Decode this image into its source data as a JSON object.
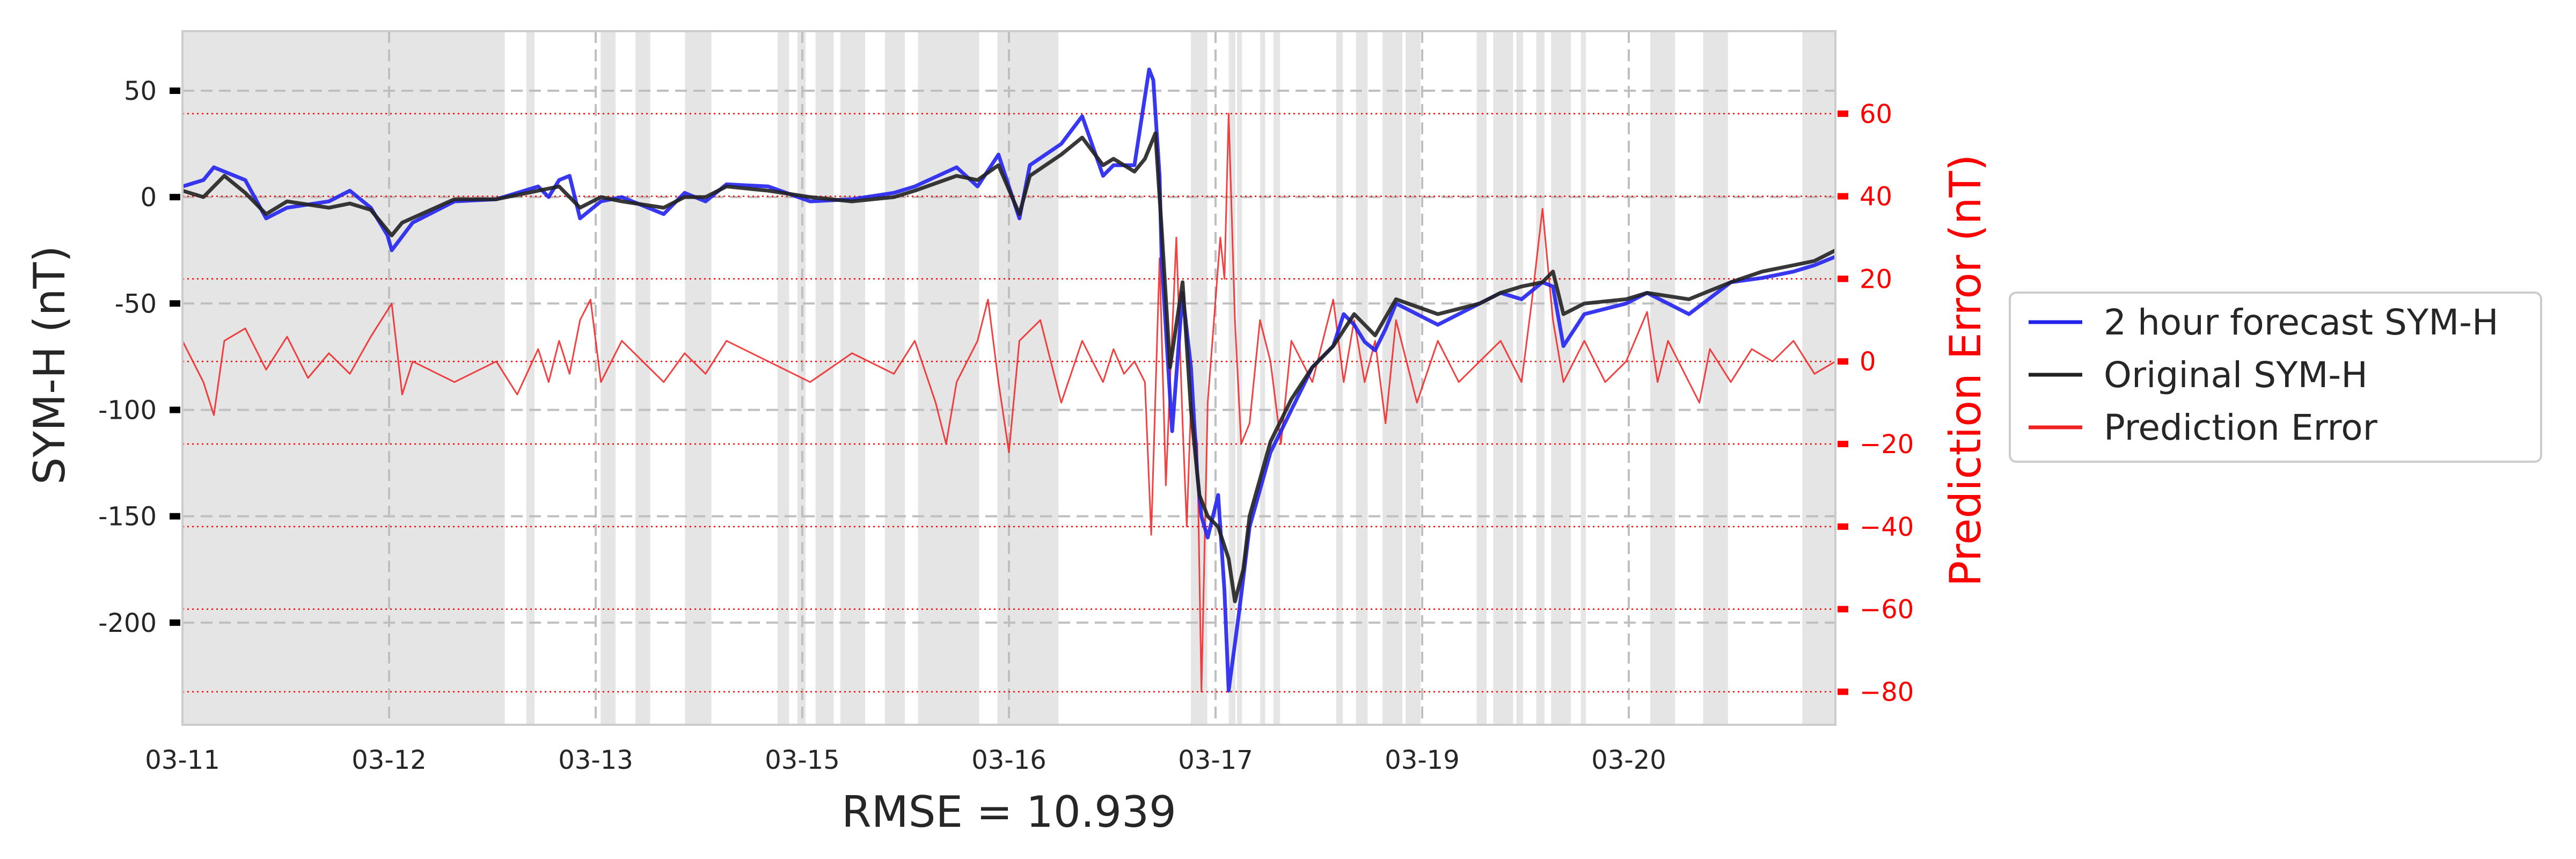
{
  "chart_data": {
    "type": "line",
    "xlabel": "RMSE = 10.939",
    "x_tick_labels": [
      "03-11",
      "03-12",
      "03-13",
      "03-15",
      "03-16",
      "03-17",
      "03-19",
      "03-20"
    ],
    "y_left": {
      "label": "SYM-H (nT)",
      "ticks": [
        50,
        0,
        -50,
        -100,
        -150,
        -200
      ],
      "tick_labels": [
        "50",
        "0",
        "-50",
        "-100",
        "-150",
        "-200"
      ],
      "lim": [
        -248,
        78
      ],
      "tick_color": "#000000"
    },
    "y_right": {
      "label": "Prediction Error (nT)",
      "ticks": [
        60,
        40,
        20,
        0,
        -20,
        -40,
        -60,
        -80
      ],
      "tick_labels": [
        "60",
        "40",
        "20",
        "0",
        "−20",
        "−40",
        "−60",
        "−80"
      ],
      "lim": [
        -88,
        80
      ],
      "color": "#ff0000"
    },
    "grid": true,
    "background_shading": true,
    "legend_position": "right",
    "series": [
      {
        "name": "2 hour forecast SYM-H",
        "color": "#2222ee",
        "axis": "left",
        "points": [
          [
            0,
            5
          ],
          [
            0.1,
            8
          ],
          [
            0.15,
            14
          ],
          [
            0.2,
            12
          ],
          [
            0.3,
            8
          ],
          [
            0.4,
            -10
          ],
          [
            0.5,
            -5
          ],
          [
            0.7,
            -2
          ],
          [
            0.8,
            3
          ],
          [
            0.9,
            -5
          ],
          [
            0.98,
            -18
          ],
          [
            1.0,
            -25
          ],
          [
            1.1,
            -12
          ],
          [
            1.3,
            -2
          ],
          [
            1.5,
            -1
          ],
          [
            1.7,
            5
          ],
          [
            1.75,
            0
          ],
          [
            1.8,
            8
          ],
          [
            1.85,
            10
          ],
          [
            1.9,
            -10
          ],
          [
            2.0,
            -2
          ],
          [
            2.1,
            0
          ],
          [
            2.3,
            -8
          ],
          [
            2.4,
            2
          ],
          [
            2.5,
            -2
          ],
          [
            2.6,
            6
          ],
          [
            2.8,
            5
          ],
          [
            3.0,
            -2
          ],
          [
            3.2,
            -1
          ],
          [
            3.4,
            2
          ],
          [
            3.5,
            5
          ],
          [
            3.7,
            14
          ],
          [
            3.8,
            5
          ],
          [
            3.9,
            20
          ],
          [
            4.0,
            -10
          ],
          [
            4.05,
            15
          ],
          [
            4.2,
            25
          ],
          [
            4.3,
            38
          ],
          [
            4.4,
            10
          ],
          [
            4.45,
            15
          ],
          [
            4.55,
            15
          ],
          [
            4.62,
            60
          ],
          [
            4.64,
            55
          ],
          [
            4.67,
            10
          ],
          [
            4.68,
            -30
          ],
          [
            4.73,
            -110
          ],
          [
            4.78,
            -45
          ],
          [
            4.82,
            -80
          ],
          [
            4.85,
            -130
          ],
          [
            4.87,
            -150
          ],
          [
            4.9,
            -160
          ],
          [
            4.95,
            -140
          ],
          [
            4.98,
            -185
          ],
          [
            5.0,
            -232
          ],
          [
            5.05,
            -195
          ],
          [
            5.1,
            -155
          ],
          [
            5.2,
            -120
          ],
          [
            5.3,
            -100
          ],
          [
            5.4,
            -80
          ],
          [
            5.5,
            -70
          ],
          [
            5.55,
            -55
          ],
          [
            5.6,
            -60
          ],
          [
            5.65,
            -68
          ],
          [
            5.7,
            -72
          ],
          [
            5.75,
            -62
          ],
          [
            5.8,
            -50
          ],
          [
            6.0,
            -60
          ],
          [
            6.2,
            -50
          ],
          [
            6.3,
            -45
          ],
          [
            6.4,
            -48
          ],
          [
            6.5,
            -40
          ],
          [
            6.55,
            -42
          ],
          [
            6.6,
            -70
          ],
          [
            6.7,
            -55
          ],
          [
            6.9,
            -50
          ],
          [
            7.0,
            -45
          ],
          [
            7.2,
            -55
          ],
          [
            7.4,
            -40
          ],
          [
            7.55,
            -38
          ],
          [
            7.7,
            -35
          ],
          [
            7.8,
            -32
          ],
          [
            7.9,
            -28
          ]
        ]
      },
      {
        "name": "Original SYM-H",
        "color": "#222222",
        "axis": "left",
        "points": [
          [
            0,
            3
          ],
          [
            0.1,
            0
          ],
          [
            0.2,
            10
          ],
          [
            0.3,
            2
          ],
          [
            0.4,
            -8
          ],
          [
            0.5,
            -2
          ],
          [
            0.7,
            -5
          ],
          [
            0.8,
            -3
          ],
          [
            0.9,
            -6
          ],
          [
            1.0,
            -18
          ],
          [
            1.05,
            -12
          ],
          [
            1.3,
            -1
          ],
          [
            1.5,
            -1
          ],
          [
            1.7,
            3
          ],
          [
            1.8,
            5
          ],
          [
            1.9,
            -5
          ],
          [
            2.0,
            0
          ],
          [
            2.1,
            -2
          ],
          [
            2.3,
            -5
          ],
          [
            2.4,
            0
          ],
          [
            2.5,
            0
          ],
          [
            2.6,
            5
          ],
          [
            2.8,
            3
          ],
          [
            3.0,
            0
          ],
          [
            3.2,
            -2
          ],
          [
            3.4,
            0
          ],
          [
            3.5,
            3
          ],
          [
            3.7,
            10
          ],
          [
            3.8,
            8
          ],
          [
            3.9,
            15
          ],
          [
            4.0,
            -8
          ],
          [
            4.05,
            10
          ],
          [
            4.2,
            20
          ],
          [
            4.3,
            28
          ],
          [
            4.4,
            15
          ],
          [
            4.45,
            18
          ],
          [
            4.55,
            12
          ],
          [
            4.6,
            18
          ],
          [
            4.65,
            30
          ],
          [
            4.68,
            -15
          ],
          [
            4.72,
            -80
          ],
          [
            4.78,
            -40
          ],
          [
            4.82,
            -100
          ],
          [
            4.86,
            -140
          ],
          [
            4.9,
            -150
          ],
          [
            4.95,
            -155
          ],
          [
            5.0,
            -170
          ],
          [
            5.03,
            -190
          ],
          [
            5.07,
            -175
          ],
          [
            5.1,
            -150
          ],
          [
            5.2,
            -115
          ],
          [
            5.3,
            -95
          ],
          [
            5.4,
            -80
          ],
          [
            5.5,
            -70
          ],
          [
            5.6,
            -55
          ],
          [
            5.7,
            -65
          ],
          [
            5.8,
            -48
          ],
          [
            6.0,
            -55
          ],
          [
            6.2,
            -50
          ],
          [
            6.3,
            -45
          ],
          [
            6.4,
            -42
          ],
          [
            6.5,
            -40
          ],
          [
            6.55,
            -35
          ],
          [
            6.6,
            -55
          ],
          [
            6.7,
            -50
          ],
          [
            6.9,
            -48
          ],
          [
            7.0,
            -45
          ],
          [
            7.2,
            -48
          ],
          [
            7.4,
            -40
          ],
          [
            7.55,
            -35
          ],
          [
            7.7,
            -32
          ],
          [
            7.8,
            -30
          ],
          [
            7.9,
            -25
          ]
        ]
      },
      {
        "name": "Prediction Error",
        "color": "#ee2222",
        "axis": "right",
        "points": [
          [
            0,
            5
          ],
          [
            0.1,
            -5
          ],
          [
            0.15,
            -13
          ],
          [
            0.2,
            5
          ],
          [
            0.3,
            8
          ],
          [
            0.4,
            -2
          ],
          [
            0.5,
            6
          ],
          [
            0.6,
            -4
          ],
          [
            0.7,
            2
          ],
          [
            0.8,
            -3
          ],
          [
            0.9,
            6
          ],
          [
            1.0,
            14
          ],
          [
            1.05,
            -8
          ],
          [
            1.1,
            0
          ],
          [
            1.3,
            -5
          ],
          [
            1.5,
            0
          ],
          [
            1.6,
            -8
          ],
          [
            1.7,
            3
          ],
          [
            1.75,
            -5
          ],
          [
            1.8,
            5
          ],
          [
            1.85,
            -3
          ],
          [
            1.9,
            10
          ],
          [
            1.95,
            15
          ],
          [
            2.0,
            -5
          ],
          [
            2.1,
            5
          ],
          [
            2.3,
            -5
          ],
          [
            2.4,
            2
          ],
          [
            2.5,
            -3
          ],
          [
            2.6,
            5
          ],
          [
            2.8,
            0
          ],
          [
            3.0,
            -5
          ],
          [
            3.2,
            2
          ],
          [
            3.4,
            -3
          ],
          [
            3.5,
            5
          ],
          [
            3.6,
            -10
          ],
          [
            3.65,
            -20
          ],
          [
            3.7,
            -5
          ],
          [
            3.8,
            5
          ],
          [
            3.85,
            15
          ],
          [
            3.9,
            -5
          ],
          [
            3.95,
            -22
          ],
          [
            4.0,
            5
          ],
          [
            4.1,
            10
          ],
          [
            4.2,
            -10
          ],
          [
            4.3,
            5
          ],
          [
            4.4,
            -5
          ],
          [
            4.45,
            3
          ],
          [
            4.5,
            -3
          ],
          [
            4.55,
            0
          ],
          [
            4.6,
            -5
          ],
          [
            4.63,
            -42
          ],
          [
            4.67,
            25
          ],
          [
            4.7,
            -30
          ],
          [
            4.72,
            -5
          ],
          [
            4.75,
            30
          ],
          [
            4.78,
            -15
          ],
          [
            4.8,
            -40
          ],
          [
            4.82,
            -10
          ],
          [
            4.85,
            -20
          ],
          [
            4.87,
            -80
          ],
          [
            4.9,
            -10
          ],
          [
            4.93,
            10
          ],
          [
            4.96,
            30
          ],
          [
            4.98,
            20
          ],
          [
            5.0,
            60
          ],
          [
            5.03,
            10
          ],
          [
            5.06,
            -20
          ],
          [
            5.1,
            -15
          ],
          [
            5.15,
            10
          ],
          [
            5.2,
            0
          ],
          [
            5.25,
            -20
          ],
          [
            5.3,
            5
          ],
          [
            5.4,
            -5
          ],
          [
            5.5,
            15
          ],
          [
            5.55,
            -5
          ],
          [
            5.6,
            10
          ],
          [
            5.65,
            -5
          ],
          [
            5.7,
            5
          ],
          [
            5.75,
            -15
          ],
          [
            5.8,
            10
          ],
          [
            5.85,
            0
          ],
          [
            5.9,
            -10
          ],
          [
            6.0,
            5
          ],
          [
            6.1,
            -5
          ],
          [
            6.2,
            0
          ],
          [
            6.3,
            5
          ],
          [
            6.4,
            -5
          ],
          [
            6.45,
            15
          ],
          [
            6.5,
            37
          ],
          [
            6.55,
            10
          ],
          [
            6.6,
            -5
          ],
          [
            6.7,
            5
          ],
          [
            6.8,
            -5
          ],
          [
            6.9,
            0
          ],
          [
            7.0,
            12
          ],
          [
            7.05,
            -5
          ],
          [
            7.1,
            5
          ],
          [
            7.2,
            -5
          ],
          [
            7.25,
            -10
          ],
          [
            7.3,
            3
          ],
          [
            7.4,
            -5
          ],
          [
            7.5,
            3
          ],
          [
            7.6,
            0
          ],
          [
            7.7,
            5
          ],
          [
            7.8,
            -3
          ],
          [
            7.9,
            0
          ]
        ]
      }
    ]
  }
}
